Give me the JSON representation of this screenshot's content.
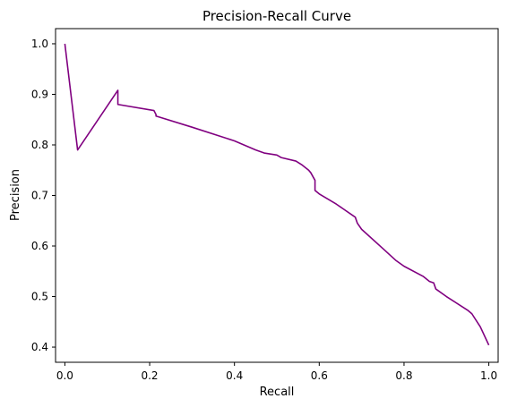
{
  "chart_data": {
    "type": "line",
    "title": "Precision-Recall Curve",
    "xlabel": "Recall",
    "ylabel": "Precision",
    "xlim": [
      -0.022,
      1.022
    ],
    "ylim": [
      0.37,
      1.03
    ],
    "xticks": [
      0.0,
      0.2,
      0.4,
      0.6,
      0.8,
      1.0
    ],
    "xtick_labels": [
      "0.0",
      "0.2",
      "0.4",
      "0.6",
      "0.8",
      "1.0"
    ],
    "yticks": [
      0.4,
      0.5,
      0.6,
      0.7,
      0.8,
      0.9,
      1.0
    ],
    "ytick_labels": [
      "0.4",
      "0.5",
      "0.6",
      "0.7",
      "0.8",
      "0.9",
      "1.0"
    ],
    "grid": false,
    "legend": "none",
    "series": [
      {
        "color": "#800080",
        "x": [
          0.0,
          0.03,
          0.125,
          0.125,
          0.21,
          0.215,
          0.215,
          0.3,
          0.4,
          0.45,
          0.47,
          0.5,
          0.51,
          0.545,
          0.56,
          0.575,
          0.58,
          0.59,
          0.59,
          0.6,
          0.64,
          0.685,
          0.69,
          0.7,
          0.75,
          0.78,
          0.8,
          0.845,
          0.86,
          0.87,
          0.875,
          0.9,
          0.95,
          0.96,
          0.98,
          1.0
        ],
        "y": [
          1.0,
          0.79,
          0.908,
          0.88,
          0.868,
          0.86,
          0.857,
          0.835,
          0.808,
          0.79,
          0.784,
          0.78,
          0.775,
          0.768,
          0.76,
          0.75,
          0.745,
          0.73,
          0.71,
          0.703,
          0.683,
          0.657,
          0.645,
          0.633,
          0.595,
          0.572,
          0.56,
          0.54,
          0.53,
          0.527,
          0.515,
          0.5,
          0.473,
          0.466,
          0.44,
          0.404
        ]
      }
    ]
  }
}
